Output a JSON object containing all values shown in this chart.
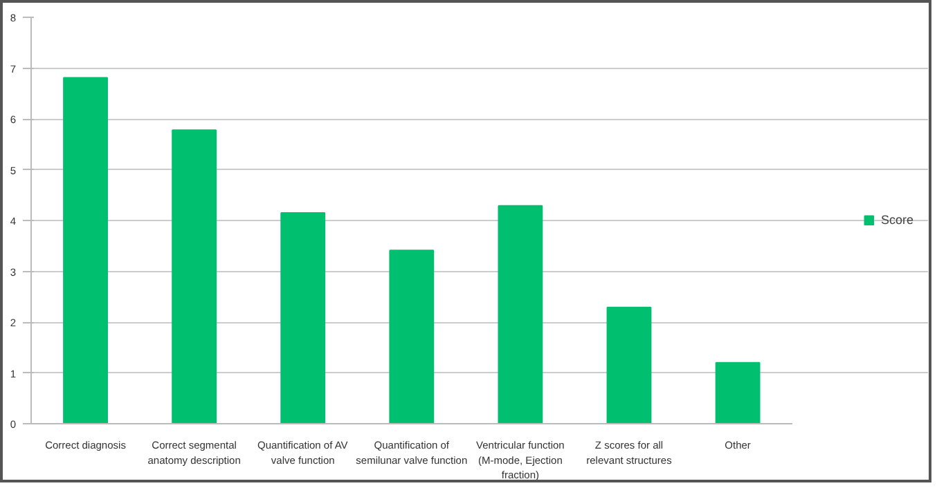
{
  "chart_data": {
    "type": "bar",
    "categories": [
      "Correct diagnosis",
      "Correct segmental anatomy description",
      "Quantification of AV valve function",
      "Quantification of semilunar valve function",
      "Ventricular function (M-mode, Ejection fraction)",
      "Z scores for all relevant structures",
      "Other"
    ],
    "series": [
      {
        "name": "Score",
        "color": "#00bf6f",
        "values": [
          6.81,
          5.78,
          4.15,
          3.41,
          4.29,
          2.29,
          1.2
        ]
      }
    ],
    "ylim": [
      0,
      8
    ],
    "yticks": [
      0,
      1,
      2,
      3,
      4,
      5,
      6,
      7,
      8
    ],
    "grid": "y",
    "legend": "right"
  }
}
